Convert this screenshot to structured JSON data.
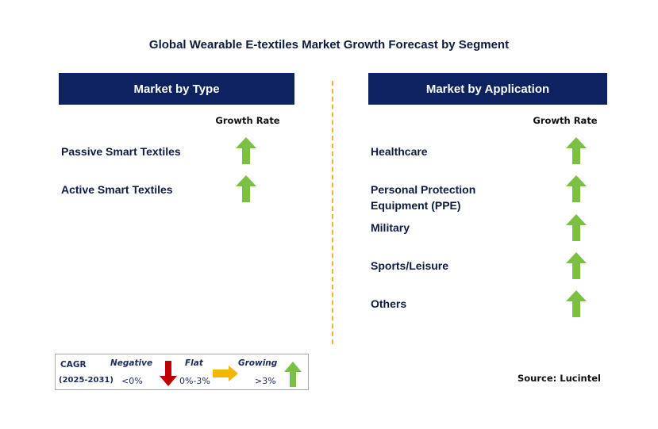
{
  "title": "Global Wearable E-textiles Market Growth Forecast by Segment",
  "left_panel": {
    "header": "Market by Type",
    "growth_label": "Growth Rate",
    "rows": [
      {
        "label": "Passive Smart Textiles",
        "trend": "growing"
      },
      {
        "label": "Active Smart Textiles",
        "trend": "growing"
      }
    ]
  },
  "right_panel": {
    "header": "Market by Application",
    "growth_label": "Growth Rate",
    "rows": [
      {
        "label": "Healthcare",
        "trend": "growing"
      },
      {
        "label_line1": "Personal Protection",
        "label_line2": "Equipment (PPE)",
        "trend": "growing"
      },
      {
        "label": "Military",
        "trend": "growing"
      },
      {
        "label": "Sports/Leisure",
        "trend": "growing"
      },
      {
        "label": "Others",
        "trend": "growing"
      }
    ]
  },
  "legend": {
    "cagr_label": "CAGR",
    "period": "(2025-2031)",
    "negative_label": "Negative",
    "negative_value": "<0%",
    "flat_label": "Flat",
    "flat_value": "0%-3%",
    "growing_label": "Growing",
    "growing_value": ">3%"
  },
  "source": "Source: Lucintel",
  "colors": {
    "header_bg": "#0e2160",
    "growing_arrow": "#7ac143",
    "negative_arrow": "#c00000",
    "flat_arrow": "#f5b400",
    "divider": "#f0b23a"
  },
  "icons": {
    "growing": "arrow-up-icon",
    "negative": "arrow-down-icon",
    "flat": "arrow-right-icon"
  }
}
